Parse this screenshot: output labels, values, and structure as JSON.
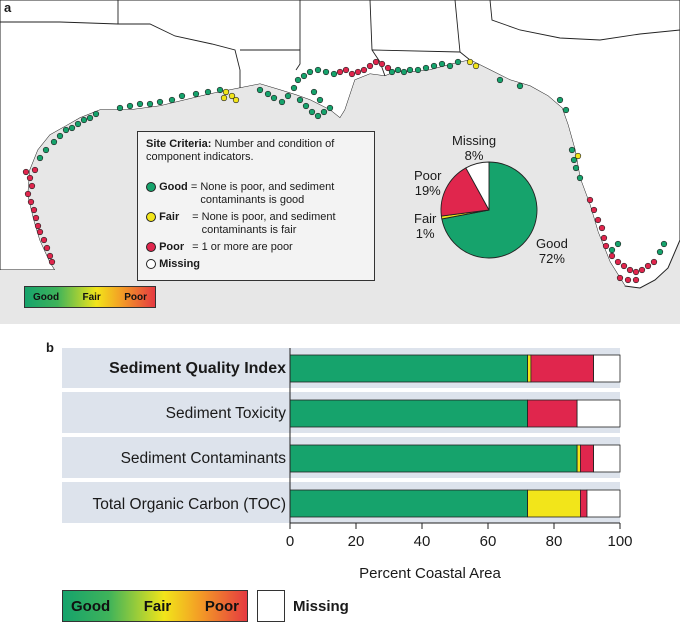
{
  "panel_a_label": "a",
  "panel_b_label": "b",
  "criteria": {
    "title": "Site Criteria:",
    "title_rest": "Number and condition of component indicators.",
    "rows": [
      {
        "term": "Good",
        "eq": "=",
        "desc": "None is poor, and sediment contaminants is good",
        "color": "#16a36c"
      },
      {
        "term": "Fair",
        "eq": "=",
        "desc": "None is poor, and sediment contaminants is fair",
        "color": "#f2e51a"
      },
      {
        "term": "Poor",
        "eq": "=",
        "desc": "1 or more are poor",
        "color": "#e0264d"
      },
      {
        "term": "Missing",
        "eq": "",
        "desc": "",
        "color": "#ffffff"
      }
    ]
  },
  "pie": {
    "slices": [
      {
        "name": "Good",
        "pct": 72,
        "label": "72%",
        "color": "#16a36c"
      },
      {
        "name": "Fair",
        "pct": 1,
        "label": "1%",
        "color": "#f2e51a"
      },
      {
        "name": "Poor",
        "pct": 19,
        "label": "19%",
        "color": "#e0264d"
      },
      {
        "name": "Missing",
        "pct": 8,
        "label": "8%",
        "color": "#ffffff"
      }
    ]
  },
  "map_legend": {
    "good": "Good",
    "fair": "Fair",
    "poor": "Poor"
  },
  "chart_data": {
    "type": "bar",
    "orientation": "horizontal-stacked",
    "categories": [
      "Sediment Quality Index",
      "Sediment Toxicity",
      "Sediment Contaminants",
      "Total Organic Carbon (TOC)"
    ],
    "series": [
      {
        "name": "Good",
        "color": "#16a36c",
        "values": [
          72,
          72,
          87,
          72
        ]
      },
      {
        "name": "Fair",
        "color": "#f2e51a",
        "values": [
          1,
          0,
          1,
          16
        ]
      },
      {
        "name": "Poor",
        "color": "#e0264d",
        "values": [
          19,
          15,
          4,
          2
        ]
      },
      {
        "name": "Missing",
        "color": "#ffffff",
        "values": [
          8,
          13,
          8,
          10
        ]
      }
    ],
    "xlabel": "Percent Coastal Area",
    "xlim": [
      0,
      100
    ],
    "xticks": [
      0,
      20,
      40,
      60,
      80,
      100
    ],
    "title": ""
  },
  "bottom_legend": {
    "good": "Good",
    "fair": "Fair",
    "poor": "Poor",
    "missing": "Missing"
  }
}
